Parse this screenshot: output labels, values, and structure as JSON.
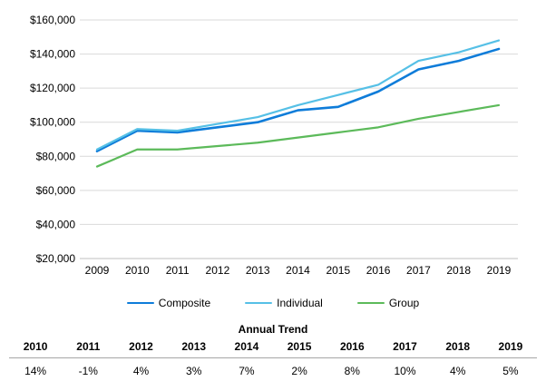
{
  "chart_data": {
    "type": "line",
    "title": "",
    "x": [
      "2009",
      "2010",
      "2011",
      "2012",
      "2013",
      "2014",
      "2015",
      "2016",
      "2017",
      "2018",
      "2019"
    ],
    "series": [
      {
        "name": "Composite",
        "color": "#0e7cd9",
        "stroke_width": 2.6,
        "values": [
          83000,
          95000,
          94000,
          97000,
          100000,
          107000,
          109000,
          118000,
          131000,
          136000,
          143000
        ]
      },
      {
        "name": "Individual",
        "color": "#56c0e6",
        "stroke_width": 2.2,
        "values": [
          84000,
          96000,
          95000,
          99000,
          103000,
          110000,
          116000,
          122000,
          136000,
          141000,
          148000
        ]
      },
      {
        "name": "Group",
        "color": "#5cba5a",
        "stroke_width": 2.2,
        "values": [
          74000,
          84000,
          84000,
          86000,
          88000,
          91000,
          94000,
          97000,
          102000,
          106000,
          110000
        ]
      }
    ],
    "y_axis": {
      "min": 20000,
      "max": 160000,
      "tick_step": 20000,
      "tick_labels": [
        "$20,000",
        "$40,000",
        "$60,000",
        "$80,000",
        "$100,000",
        "$120,000",
        "$140,000",
        "$160,000"
      ]
    },
    "grid": true,
    "legend_position": "bottom"
  },
  "trend_table": {
    "title": "Annual Trend",
    "years": [
      "2010",
      "2011",
      "2012",
      "2013",
      "2014",
      "2015",
      "2016",
      "2017",
      "2018",
      "2019"
    ],
    "values": [
      "14%",
      "-1%",
      "4%",
      "3%",
      "7%",
      "2%",
      "8%",
      "10%",
      "4%",
      "5%"
    ]
  },
  "colors": {
    "background": "#ffffff",
    "gridline": "#d9d9d9",
    "axis_line": "#bfbfbf",
    "text": "#000000",
    "table_rule": "#a6a6a6"
  }
}
